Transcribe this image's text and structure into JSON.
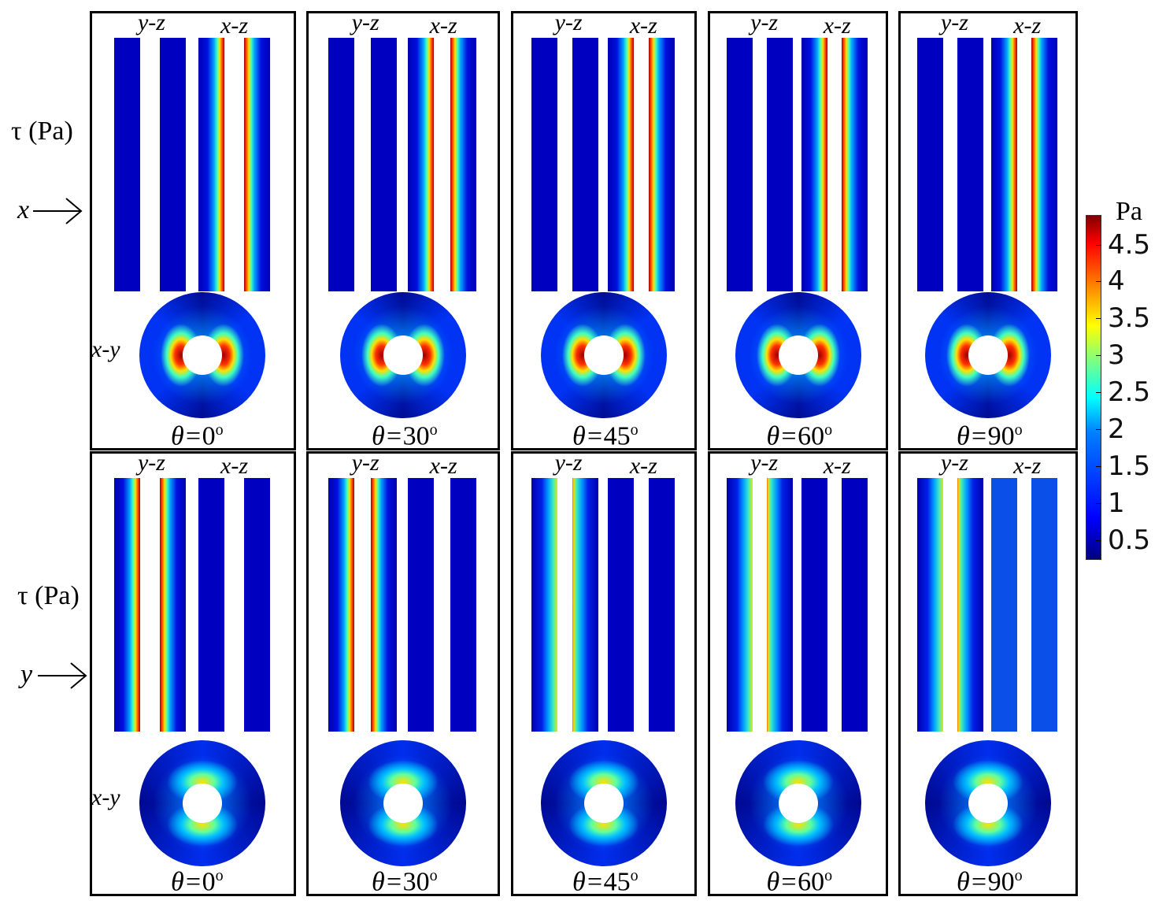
{
  "row_labels": [
    {
      "quantity": "τ (Pa)",
      "direction": "x"
    },
    {
      "quantity": "τ (Pa)",
      "direction": "y"
    }
  ],
  "plane_labels": {
    "yz": "y-z",
    "xz": "x-z",
    "xy": "x-y"
  },
  "theta_symbol": "θ=",
  "degree_mark": "o",
  "rows": [
    {
      "direction": "x",
      "panels": [
        {
          "theta": "0"
        },
        {
          "theta": "30"
        },
        {
          "theta": "45"
        },
        {
          "theta": "60"
        },
        {
          "theta": "90"
        }
      ]
    },
    {
      "direction": "y",
      "panels": [
        {
          "theta": "0"
        },
        {
          "theta": "30"
        },
        {
          "theta": "45"
        },
        {
          "theta": "60"
        },
        {
          "theta": "90"
        }
      ]
    }
  ],
  "colorbar": {
    "unit": "Pa",
    "colormap": "jet",
    "range": [
      0.25,
      4.9
    ],
    "ticks": [
      "4.5",
      "4",
      "3.5",
      "3",
      "2.5",
      "2",
      "1.5",
      "1",
      "0.5"
    ]
  },
  "colors": {
    "low": "#00008f",
    "base": "#0000c0",
    "high": "#800000",
    "light_base": "#0a50e8"
  }
}
